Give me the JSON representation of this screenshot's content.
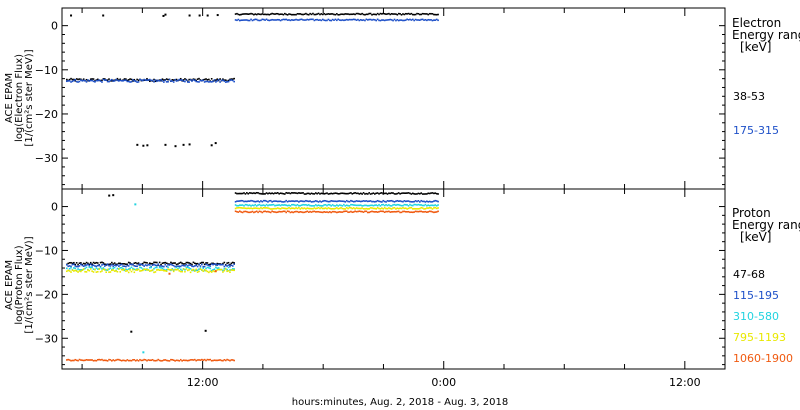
{
  "chart_data": {
    "type": "scatter",
    "xlabel": "hours:minutes, Aug.  2, 2018 - Aug.  3, 2018",
    "x_ticks": [
      "12:00",
      "0:00",
      "12:00"
    ],
    "x_tick_hours": [
      12,
      24,
      36
    ],
    "x_range_hours": [
      5,
      38
    ],
    "panels": [
      {
        "id": "electron",
        "ylabel": [
          "ACE EPAM",
          "log(Electron Flux)",
          "[1/(cm²s ster MeV)]"
        ],
        "ylim": [
          -37,
          4
        ],
        "yticks": [
          0,
          -10,
          -20,
          -30
        ],
        "ytick_labels": [
          "0",
          "−10",
          "−20",
          "−30"
        ],
        "legend_title": [
          "Electron",
          "Energy range",
          "[keV]"
        ],
        "series": [
          {
            "name": "38-53",
            "color": "#000000",
            "segments": [
              {
                "x_start": 5.2,
                "x_end": 13.6,
                "y": -12.3,
                "jitter": 0.3
              },
              {
                "x_start": 13.6,
                "x_end": 23.7,
                "y": 2.6,
                "jitter": 0.15
              }
            ],
            "scatter": [
              [
                5.4,
                2.3
              ],
              [
                7.0,
                2.3
              ],
              [
                10.0,
                2.2
              ],
              [
                10.1,
                2.5
              ],
              [
                11.3,
                2.3
              ],
              [
                11.8,
                2.3
              ],
              [
                12.2,
                2.3
              ],
              [
                12.7,
                2.4
              ],
              [
                8.7,
                -27.0
              ],
              [
                9.0,
                -27.2
              ],
              [
                9.2,
                -27.1
              ],
              [
                10.1,
                -27.0
              ],
              [
                10.6,
                -27.3
              ],
              [
                11.0,
                -27.0
              ],
              [
                11.3,
                -26.9
              ],
              [
                12.4,
                -27.1
              ],
              [
                12.6,
                -26.6
              ]
            ]
          },
          {
            "name": "175-315",
            "color": "#1e50c8",
            "segments": [
              {
                "x_start": 5.2,
                "x_end": 13.6,
                "y": -12.5,
                "jitter": 0.3
              },
              {
                "x_start": 13.6,
                "x_end": 23.7,
                "y": 1.3,
                "jitter": 0.15
              }
            ],
            "scatter": []
          }
        ]
      },
      {
        "id": "proton",
        "ylabel": [
          "ACE EPAM",
          "log(Proton Flux)",
          "[1/(cm²s ster MeV)]"
        ],
        "ylim": [
          -37,
          4
        ],
        "yticks": [
          0,
          -10,
          -20,
          -30
        ],
        "ytick_labels": [
          "0",
          "−10",
          "−20",
          "−30"
        ],
        "legend_title": [
          "Proton",
          "Energy range",
          "[keV]"
        ],
        "series": [
          {
            "name": "47-68",
            "color": "#000000",
            "segments": [
              {
                "x_start": 5.2,
                "x_end": 13.6,
                "y": -13.0,
                "jitter": 0.3
              },
              {
                "x_start": 13.6,
                "x_end": 23.7,
                "y": 3.0,
                "jitter": 0.15
              }
            ],
            "scatter": [
              [
                7.3,
                2.5
              ],
              [
                7.5,
                2.6
              ],
              [
                8.4,
                -28.5
              ],
              [
                12.1,
                -28.3
              ]
            ]
          },
          {
            "name": "115-195",
            "color": "#1e50c8",
            "segments": [
              {
                "x_start": 5.2,
                "x_end": 13.6,
                "y": -13.4,
                "jitter": 0.3
              },
              {
                "x_start": 13.6,
                "x_end": 23.7,
                "y": 1.2,
                "jitter": 0.15
              }
            ],
            "scatter": []
          },
          {
            "name": "310-580",
            "color": "#22d3e0",
            "segments": [
              {
                "x_start": 5.2,
                "x_end": 13.6,
                "y": -14.2,
                "jitter": 0.4
              },
              {
                "x_start": 13.6,
                "x_end": 23.7,
                "y": 0.3,
                "jitter": 0.15
              }
            ],
            "scatter": [
              [
                8.6,
                0.5
              ],
              [
                9.0,
                -33.2
              ]
            ]
          },
          {
            "name": "795-1193",
            "color": "#e8e800",
            "segments": [
              {
                "x_start": 5.2,
                "x_end": 13.6,
                "y": -14.6,
                "jitter": 0.4
              },
              {
                "x_start": 13.6,
                "x_end": 23.7,
                "y": -0.4,
                "jitter": 0.15
              }
            ],
            "scatter": []
          },
          {
            "name": "1060-1900",
            "color": "#f05a10",
            "segments": [
              {
                "x_start": 5.2,
                "x_end": 13.6,
                "y": -35.0,
                "jitter": 0.15
              },
              {
                "x_start": 13.6,
                "x_end": 23.7,
                "y": -1.2,
                "jitter": 0.15
              }
            ],
            "scatter": [
              [
                10.3,
                -15.3
              ],
              [
                12.6,
                -14.7
              ]
            ]
          }
        ]
      }
    ]
  }
}
